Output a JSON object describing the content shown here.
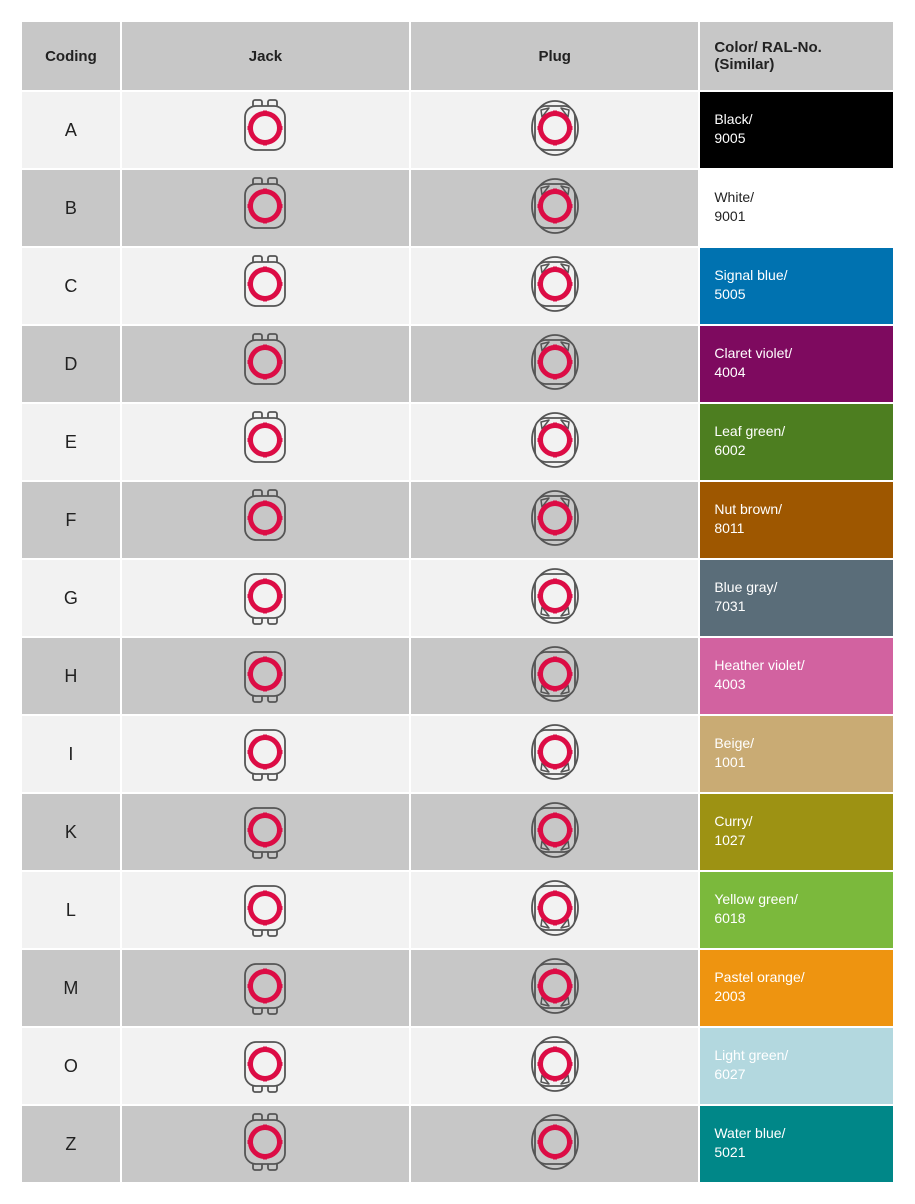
{
  "headers": {
    "coding": "Coding",
    "jack": "Jack",
    "plug": "Plug",
    "color": "Color/ RAL-No.\n(Similar)"
  },
  "icon_colors": {
    "stroke": "#555555",
    "ring": "#dc0c45",
    "fill_light": "#f2f2f2",
    "fill_dark": "#c7c7c7"
  },
  "rows": [
    {
      "coding": "A",
      "color_name": "Black/",
      "ral": "9005",
      "swatch": "#000000",
      "swatch_text": "#ffffff",
      "alt": "a",
      "jackTabs": "top",
      "plugCorners": "top"
    },
    {
      "coding": "B",
      "color_name": "White/",
      "ral": "9001",
      "swatch": "#ffffff",
      "swatch_text": "#222222",
      "alt": "b",
      "jackTabs": "top",
      "plugCorners": "top"
    },
    {
      "coding": "C",
      "color_name": "Signal blue/",
      "ral": "5005",
      "swatch": "#0072b0",
      "swatch_text": "#ffffff",
      "alt": "a",
      "jackTabs": "top",
      "plugCorners": "top"
    },
    {
      "coding": "D",
      "color_name": "Claret violet/",
      "ral": "4004",
      "swatch": "#7e0a5f",
      "swatch_text": "#ffffff",
      "alt": "b",
      "jackTabs": "top",
      "plugCorners": "top"
    },
    {
      "coding": "E",
      "color_name": "Leaf green/",
      "ral": "6002",
      "swatch": "#4d7e20",
      "swatch_text": "#ffffff",
      "alt": "a",
      "jackTabs": "top",
      "plugCorners": "top"
    },
    {
      "coding": "F",
      "color_name": "Nut brown/",
      "ral": "8011",
      "swatch": "#9e5700",
      "swatch_text": "#ffffff",
      "alt": "b",
      "jackTabs": "top",
      "plugCorners": "top"
    },
    {
      "coding": "G",
      "color_name": "Blue gray/",
      "ral": "7031",
      "swatch": "#5a6d79",
      "swatch_text": "#ffffff",
      "alt": "a",
      "jackTabs": "bottom",
      "plugCorners": "bottom"
    },
    {
      "coding": "H",
      "color_name": "Heather violet/",
      "ral": "4003",
      "swatch": "#d262a0",
      "swatch_text": "#ffffff",
      "alt": "b",
      "jackTabs": "bottom",
      "plugCorners": "bottom"
    },
    {
      "coding": "I",
      "color_name": "Beige/",
      "ral": "1001",
      "swatch": "#c9ab74",
      "swatch_text": "#ffffff",
      "alt": "a",
      "jackTabs": "bottom",
      "plugCorners": "bottom"
    },
    {
      "coding": "K",
      "color_name": "Curry/",
      "ral": "1027",
      "swatch": "#9d9213",
      "swatch_text": "#ffffff",
      "alt": "b",
      "jackTabs": "bottom",
      "plugCorners": "bottom"
    },
    {
      "coding": "L",
      "color_name": "Yellow green/",
      "ral": "6018",
      "swatch": "#7bb93c",
      "swatch_text": "#ffffff",
      "alt": "a",
      "jackTabs": "bottom",
      "plugCorners": "bottom"
    },
    {
      "coding": "M",
      "color_name": "Pastel orange/",
      "ral": "2003",
      "swatch": "#ee9410",
      "swatch_text": "#ffffff",
      "alt": "b",
      "jackTabs": "bottom",
      "plugCorners": "bottom"
    },
    {
      "coding": "O",
      "color_name": "Light green/",
      "ral": "6027",
      "swatch": "#b3d8df",
      "swatch_text": "#ffffff",
      "alt": "a",
      "jackTabs": "bottom",
      "plugCorners": "bottom"
    },
    {
      "coding": "Z",
      "color_name": "Water blue/",
      "ral": "5021",
      "swatch": "#008788",
      "swatch_text": "#ffffff",
      "alt": "b",
      "jackTabs": "both",
      "plugCorners": "none"
    }
  ]
}
